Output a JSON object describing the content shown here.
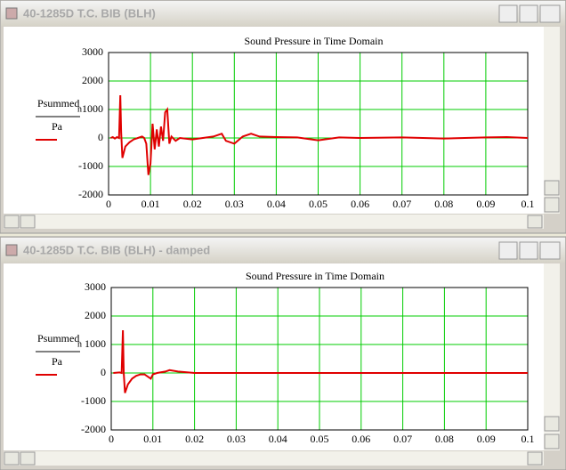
{
  "windows": [
    {
      "title": "40-1285D T.C. BIB (BLH)"
    },
    {
      "title": "40-1285D T.C. BIB (BLH) - damped"
    }
  ],
  "chart_data": [
    {
      "type": "line",
      "title": "Sound Pressure in Time Domain",
      "ylabel": {
        "numerator": "Psummed",
        "subscript": "n",
        "denominator": "Pa"
      },
      "x": [
        0.0005,
        0.001,
        0.0015,
        0.002,
        0.0025,
        0.0028,
        0.003,
        0.0033,
        0.004,
        0.005,
        0.006,
        0.007,
        0.008,
        0.0085,
        0.009,
        0.0095,
        0.01,
        0.0105,
        0.011,
        0.0115,
        0.012,
        0.0125,
        0.013,
        0.0135,
        0.014,
        0.0145,
        0.015,
        0.016,
        0.017,
        0.02,
        0.025,
        0.027,
        0.028,
        0.03,
        0.032,
        0.034,
        0.036,
        0.04,
        0.045,
        0.05,
        0.055,
        0.06,
        0.07,
        0.08,
        0.09,
        0.095,
        0.1
      ],
      "series": [
        {
          "color": "#e00000",
          "values": [
            0,
            30,
            -20,
            30,
            0,
            1500,
            200,
            -700,
            -300,
            -150,
            -50,
            0,
            50,
            0,
            -200,
            -1300,
            -900,
            500,
            -400,
            300,
            -300,
            400,
            -100,
            900,
            1000,
            -200,
            50,
            -100,
            0,
            -50,
            50,
            150,
            -100,
            -200,
            50,
            150,
            50,
            30,
            20,
            -80,
            20,
            0,
            20,
            -20,
            20,
            30,
            0
          ]
        }
      ],
      "xlim": [
        0,
        0.1
      ],
      "xticks": [
        0,
        0.01,
        0.02,
        0.03,
        0.04,
        0.05,
        0.06,
        0.07,
        0.08,
        0.09,
        0.1
      ],
      "ylim": [
        -2000,
        3000
      ],
      "yticks": [
        -2000,
        -1000,
        0,
        1000,
        2000,
        3000
      ],
      "grid": true,
      "grid_color": "#00cc00"
    },
    {
      "type": "line",
      "title": "Sound Pressure in Time Domain",
      "ylabel": {
        "numerator": "Psummed",
        "subscript": "n",
        "denominator": "Pa"
      },
      "x": [
        0.0005,
        0.002,
        0.0025,
        0.0028,
        0.003,
        0.0033,
        0.004,
        0.005,
        0.006,
        0.007,
        0.008,
        0.009,
        0.0095,
        0.01,
        0.011,
        0.013,
        0.014,
        0.016,
        0.02,
        0.03,
        0.04,
        0.05,
        0.06,
        0.1
      ],
      "series": [
        {
          "color": "#e00000",
          "values": [
            0,
            20,
            0,
            1500,
            0,
            -700,
            -400,
            -200,
            -100,
            -50,
            -50,
            -150,
            -200,
            -50,
            0,
            50,
            100,
            50,
            0,
            0,
            0,
            0,
            0,
            0
          ]
        }
      ],
      "xlim": [
        0,
        0.1
      ],
      "xticks": [
        0,
        0.01,
        0.02,
        0.03,
        0.04,
        0.05,
        0.06,
        0.07,
        0.08,
        0.09,
        0.1
      ],
      "ylim": [
        -2000,
        3000
      ],
      "yticks": [
        -2000,
        -1000,
        0,
        1000,
        2000,
        3000
      ],
      "grid": true,
      "grid_color": "#00cc00"
    }
  ]
}
